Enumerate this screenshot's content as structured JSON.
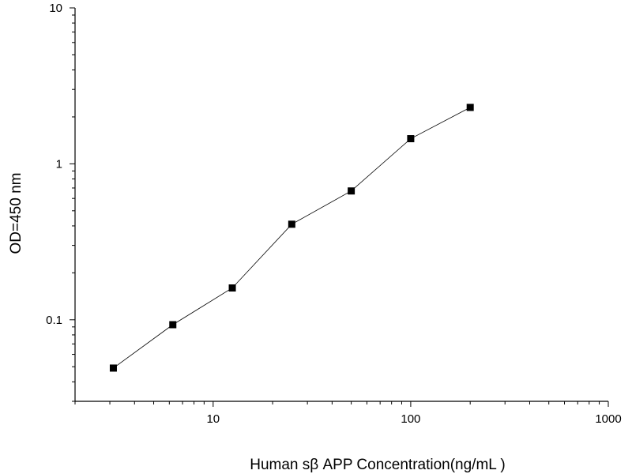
{
  "chart_data": {
    "type": "scatter",
    "title": "",
    "xlabel": "Human sβ APP Concentration(ng/mL )",
    "ylabel": "OD=450 nm",
    "x_scale": "log",
    "y_scale": "log",
    "xlim": [
      2,
      1000
    ],
    "ylim": [
      0.03,
      10
    ],
    "x_ticks": [
      {
        "value": 10,
        "label": "10"
      },
      {
        "value": 100,
        "label": "100"
      },
      {
        "value": 1000,
        "label": "1000"
      }
    ],
    "y_ticks": [
      {
        "value": 0.1,
        "label": "0.1"
      },
      {
        "value": 1,
        "label": "1"
      },
      {
        "value": 10,
        "label": "10"
      }
    ],
    "grid": false,
    "series": [
      {
        "marker": "square",
        "line": true,
        "color": "#000000",
        "x": [
          3.125,
          6.25,
          12.5,
          25,
          50,
          100,
          200
        ],
        "y": [
          0.049,
          0.093,
          0.16,
          0.41,
          0.67,
          1.45,
          2.3
        ]
      }
    ]
  }
}
